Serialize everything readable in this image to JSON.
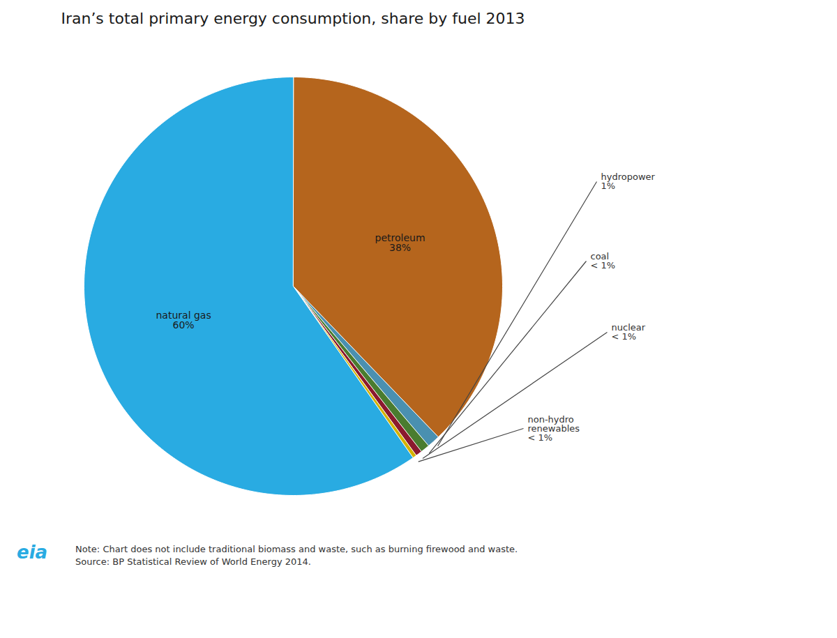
{
  "chart_data": {
    "type": "pie",
    "title": "Iran’s total primary energy consumption, share by fuel 2013",
    "categories": [
      "petroleum",
      "hydropower",
      "coal",
      "nuclear",
      "non-hydro renewables",
      "natural gas"
    ],
    "values": [
      38,
      1,
      0.7,
      0.5,
      0.3,
      60
    ],
    "value_labels": [
      "38%",
      "1%",
      "< 1%",
      "< 1%",
      "< 1%",
      "60%"
    ],
    "colors": [
      "#b5651d",
      "#4a90b0",
      "#4a7c2f",
      "#8b1a2e",
      "#d4b200",
      "#29abe2"
    ],
    "data_labels": true,
    "note": "Note: Chart does not include traditional biomass and waste, such as burning firewood and waste.\nSource: BP Statistical Review of World Energy 2014.",
    "logo": "eia"
  }
}
